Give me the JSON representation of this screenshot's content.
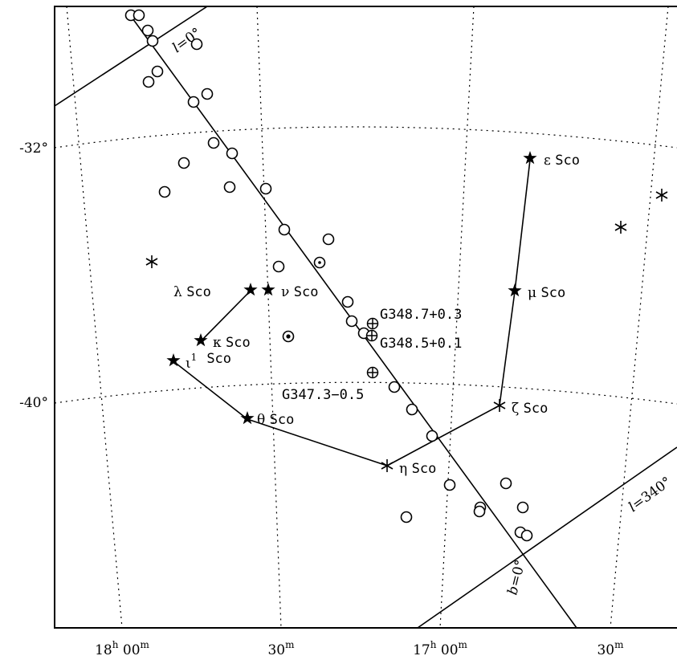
{
  "chart_data": {
    "type": "scatter",
    "title": "",
    "x_ticks": [
      {
        "main": "18",
        "sup1": "h",
        "mid": " 00",
        "sup2": "m"
      },
      {
        "main": "",
        "sup1": "",
        "mid": "30",
        "sup2": "m"
      },
      {
        "main": "17",
        "sup1": "h",
        "mid": " 00",
        "sup2": "m"
      },
      {
        "main": "",
        "sup1": "",
        "mid": "30",
        "sup2": "m"
      }
    ],
    "y_ticks": [
      "-32°",
      "-40°"
    ],
    "lines": [
      {
        "prefix": "l",
        "value": "=0°"
      },
      {
        "prefix": "l",
        "value": "=340°"
      },
      {
        "prefix": "b",
        "value": "=0°"
      }
    ],
    "stars": [
      {
        "name": "ε",
        "suffix": "Sco",
        "marker": "star"
      },
      {
        "name": "μ",
        "suffix": "Sco",
        "marker": "star"
      },
      {
        "name": "ζ",
        "suffix": "Sco",
        "marker": "asterisk"
      },
      {
        "name": "η",
        "suffix": "Sco",
        "marker": "asterisk"
      },
      {
        "name": "θ",
        "suffix": "Sco",
        "marker": "star"
      },
      {
        "name": "ι",
        "sup": "1",
        "suffix": "Sco",
        "marker": "star"
      },
      {
        "name": "κ",
        "suffix": "Sco",
        "marker": "star"
      },
      {
        "name": "λ",
        "suffix": "Sco",
        "marker": "star"
      },
      {
        "name": "ν",
        "suffix": "Sco",
        "marker": "star"
      }
    ],
    "sources": [
      "G348.7+0.3",
      "G348.5+0.1",
      "G347.3−0.5"
    ]
  }
}
